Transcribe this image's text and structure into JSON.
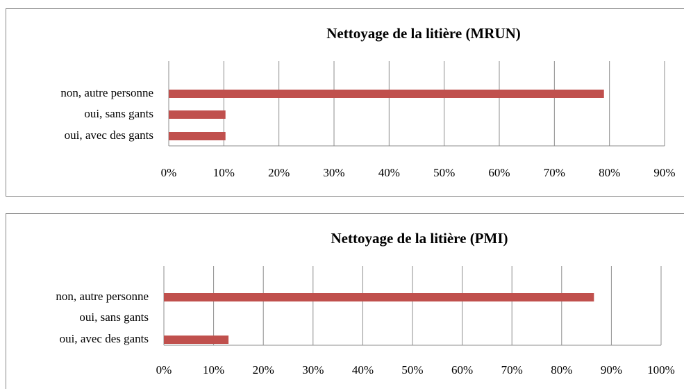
{
  "chart_data": [
    {
      "type": "hbar",
      "title": "Nettoyage de la litière (MRUN)",
      "categories": [
        "non, autre personne",
        "oui, sans gants",
        "oui, avec des gants"
      ],
      "values": [
        79,
        10.3,
        10.3
      ],
      "color": "#c0504d",
      "xlim": [
        0,
        90
      ],
      "xticks": [
        {
          "value": 0,
          "label": "0%"
        },
        {
          "value": 10,
          "label": "10%"
        },
        {
          "value": 20,
          "label": "20%"
        },
        {
          "value": 30,
          "label": "30%"
        },
        {
          "value": 40,
          "label": "40%"
        },
        {
          "value": 50,
          "label": "50%"
        },
        {
          "value": 60,
          "label": "60%"
        },
        {
          "value": 70,
          "label": "70%"
        },
        {
          "value": 80,
          "label": "80%"
        },
        {
          "value": 90,
          "label": "90%"
        }
      ],
      "grid": true
    },
    {
      "type": "hbar",
      "title": "Nettoyage de la litière (PMI)",
      "categories": [
        "non, autre personne",
        "oui, sans gants",
        "oui, avec des gants"
      ],
      "values": [
        86.5,
        0,
        13
      ],
      "color": "#c0504d",
      "xlim": [
        0,
        100
      ],
      "xticks": [
        {
          "value": 0,
          "label": "0%"
        },
        {
          "value": 10,
          "label": "10%"
        },
        {
          "value": 20,
          "label": "20%"
        },
        {
          "value": 30,
          "label": "30%"
        },
        {
          "value": 40,
          "label": "40%"
        },
        {
          "value": 50,
          "label": "50%"
        },
        {
          "value": 60,
          "label": "60%"
        },
        {
          "value": 70,
          "label": "70%"
        },
        {
          "value": 80,
          "label": "80%"
        },
        {
          "value": 90,
          "label": "90%"
        },
        {
          "value": 100,
          "label": "100%"
        }
      ],
      "grid": true
    }
  ]
}
